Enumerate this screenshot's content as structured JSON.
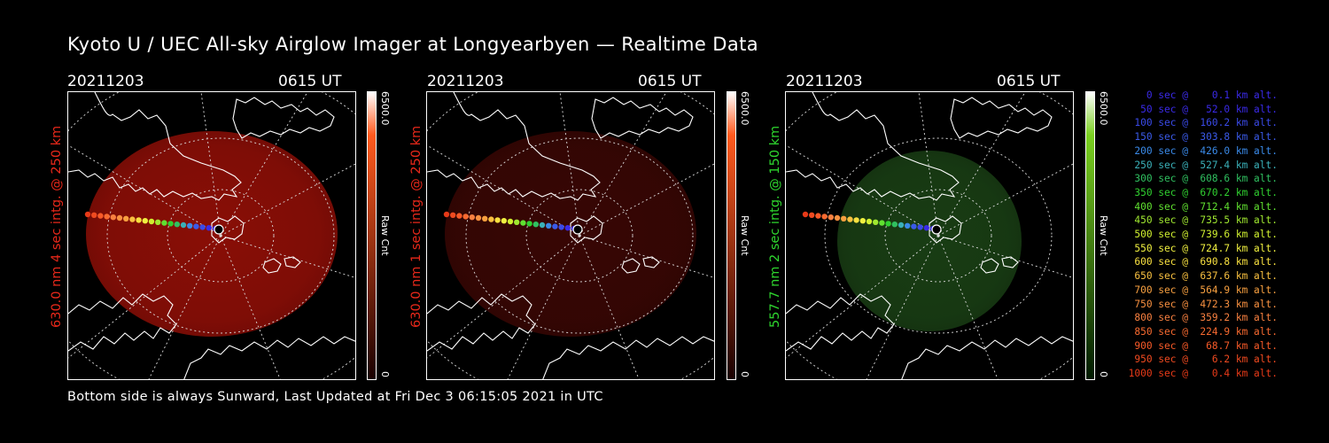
{
  "title": "Kyoto U / UEC All-sky Airglow Imager at Longyearbyen — Realtime Data",
  "footer": "Bottom side is always Sunward, Last Updated at Fri Dec  3 06:15:05 2021 in UTC",
  "panels": [
    {
      "date": "20211203",
      "time": "0615 UT",
      "label": "630.0 nm 4 sec intg. @ 250 km",
      "label_color": "#e8281a",
      "glow_color": "#b01208",
      "glow_opacity": 0.78,
      "colorbar": {
        "max_label": "6500.0",
        "min_label": "0",
        "unit_label": "Raw Cnt",
        "top_color": "#ffffff",
        "mid_color": "#ff5a1e",
        "bottom_color": "#1a0000"
      }
    },
    {
      "date": "20211203",
      "time": "0615 UT",
      "label": "630.0 nm 1 sec intg. @ 250 km",
      "label_color": "#e8281a",
      "glow_color": "#5a0a06",
      "glow_opacity": 0.62,
      "colorbar": {
        "max_label": "6500.0",
        "min_label": "0",
        "unit_label": "Raw Cnt",
        "top_color": "#ffffff",
        "mid_color": "#ff5a1e",
        "bottom_color": "#1a0000"
      }
    },
    {
      "date": "20211203",
      "time": "0615 UT",
      "label": "557.7 nm 2 sec intg. @ 150 km",
      "label_color": "#2ed62e",
      "glow_color": "#1e4a18",
      "glow_opacity": 0.82,
      "colorbar": {
        "max_label": "6500.0",
        "min_label": "0",
        "unit_label": "Raw Cnt",
        "top_color": "#ffffff",
        "mid_color": "#7ad020",
        "bottom_color": "#001a00"
      }
    }
  ],
  "legend": [
    {
      "text": "   0 sec @    0.1 km alt.",
      "color": "#3a2ae8"
    },
    {
      "text": "  50 sec @   52.0 km alt.",
      "color": "#3a2ae8"
    },
    {
      "text": " 100 sec @  160.2 km alt.",
      "color": "#3a4ae8"
    },
    {
      "text": " 150 sec @  303.8 km alt.",
      "color": "#3a5ae8"
    },
    {
      "text": " 200 sec @  426.0 km alt.",
      "color": "#3a8ae8"
    },
    {
      "text": " 250 sec @  527.4 km alt.",
      "color": "#3ab0b8"
    },
    {
      "text": " 300 sec @  608.6 km alt.",
      "color": "#30c060"
    },
    {
      "text": " 350 sec @  670.2 km alt.",
      "color": "#30d030"
    },
    {
      "text": " 400 sec @  712.4 km alt.",
      "color": "#60e030"
    },
    {
      "text": " 450 sec @  735.5 km alt.",
      "color": "#a0e830"
    },
    {
      "text": " 500 sec @  739.6 km alt.",
      "color": "#d0f030"
    },
    {
      "text": " 550 sec @  724.7 km alt.",
      "color": "#f0f040"
    },
    {
      "text": " 600 sec @  690.8 km alt.",
      "color": "#f8e040"
    },
    {
      "text": " 650 sec @  637.6 km alt.",
      "color": "#f8c040"
    },
    {
      "text": " 700 sec @  564.9 km alt.",
      "color": "#f8a040"
    },
    {
      "text": " 750 sec @  472.3 km alt.",
      "color": "#f89040"
    },
    {
      "text": " 800 sec @  359.2 km alt.",
      "color": "#f88040"
    },
    {
      "text": " 850 sec @  224.9 km alt.",
      "color": "#f86a30"
    },
    {
      "text": " 900 sec @   68.7 km alt.",
      "color": "#f85a28"
    },
    {
      "text": " 950 sec @    6.2 km alt.",
      "color": "#f04a20"
    },
    {
      "text": "1000 sec @    0.4 km alt.",
      "color": "#e83a18"
    }
  ]
}
